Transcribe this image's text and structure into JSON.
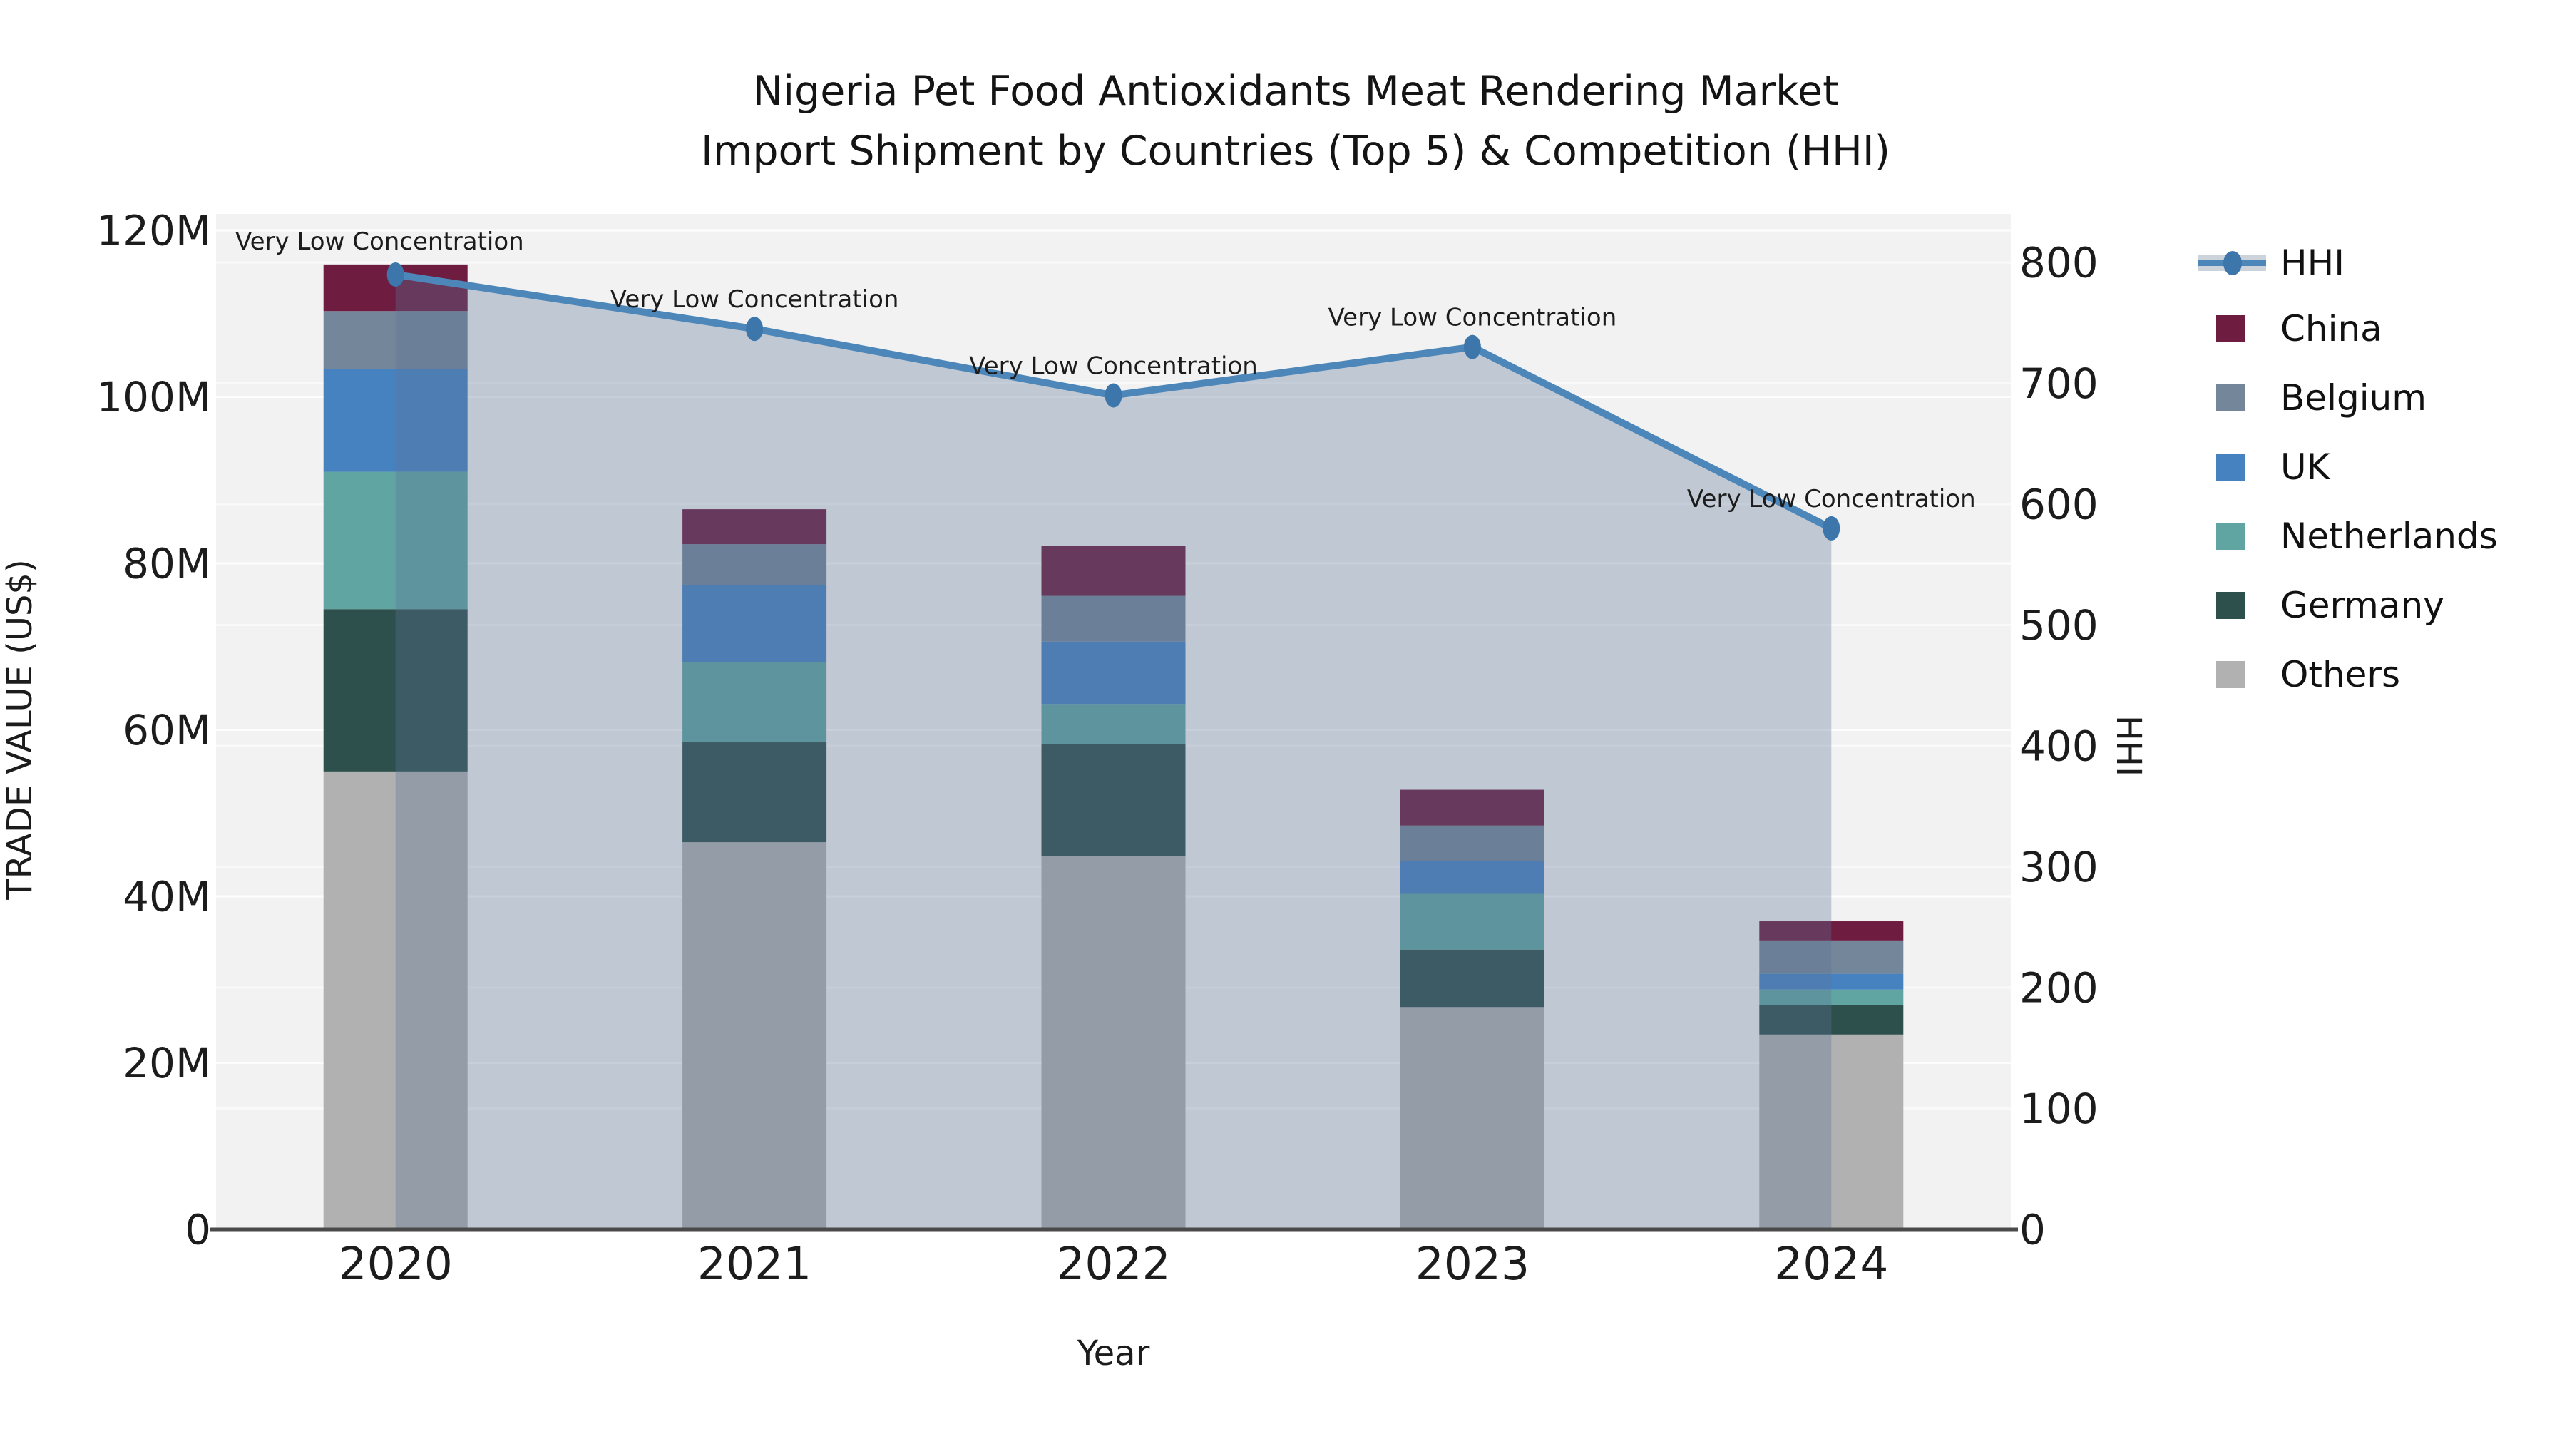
{
  "chart_data": {
    "type": "combo_stacked_bar_line",
    "title": "Nigeria Pet Food Antioxidants Meat Rendering Market",
    "subtitle": "Import Shipment by Countries (Top 5) & Competition (HHI)",
    "xlabel": "Year",
    "ylabel_left": "TRADE VALUE (US$)",
    "ylabel_right": "HHI",
    "categories": [
      "2020",
      "2021",
      "2022",
      "2023",
      "2024"
    ],
    "values_unit": "million US$",
    "series": [
      {
        "name": "China",
        "color": "#6e1d40",
        "values": [
          5.6,
          4.2,
          6.0,
          4.3,
          2.3
        ]
      },
      {
        "name": "Belgium",
        "color": "#74869a",
        "values": [
          7.0,
          4.9,
          5.5,
          4.3,
          4.0
        ]
      },
      {
        "name": "UK",
        "color": "#4682c0",
        "values": [
          12.3,
          9.3,
          7.5,
          3.9,
          1.9
        ]
      },
      {
        "name": "Netherlands",
        "color": "#60a5a1",
        "values": [
          16.5,
          9.6,
          4.8,
          6.7,
          1.9
        ]
      },
      {
        "name": "Germany",
        "color": "#2e504c",
        "values": [
          19.5,
          12.0,
          13.5,
          6.9,
          3.5
        ]
      },
      {
        "name": "Others",
        "color": "#b0b1b0",
        "values": [
          55.0,
          46.5,
          44.8,
          26.7,
          23.4
        ]
      }
    ],
    "stack_order_bottom_to_top": [
      "Others",
      "Germany",
      "Netherlands",
      "UK",
      "Belgium",
      "China"
    ],
    "bar_totals": [
      115.9,
      86.5,
      82.1,
      52.8,
      37.0
    ],
    "hhi_series": {
      "name": "HHI",
      "line_color": "#4d87ba",
      "marker_color": "#3d76ab",
      "area_color": "#5a7394",
      "area_opacity": 0.33,
      "values": [
        790,
        745,
        690,
        730,
        580
      ],
      "annotations": [
        "Very Low Concentration",
        "Very Low Concentration",
        "Very Low Concentration",
        "Very Low Concentration",
        "Very Low Concentration"
      ]
    },
    "y_left": {
      "ticks": [
        "0",
        "20M",
        "40M",
        "60M",
        "80M",
        "100M",
        "120M"
      ],
      "max": 120
    },
    "y_right": {
      "ticks": [
        "0",
        "100",
        "200",
        "300",
        "400",
        "500",
        "600",
        "700",
        "800"
      ],
      "max": 800
    },
    "legend": {
      "items": [
        "HHI",
        "China",
        "Belgium",
        "UK",
        "Netherlands",
        "Germany",
        "Others"
      ]
    },
    "grid": true,
    "plot_bg": "#f2f2f2",
    "grid_color": "#ffffff",
    "axis_line_color": "#4a4a4a"
  }
}
